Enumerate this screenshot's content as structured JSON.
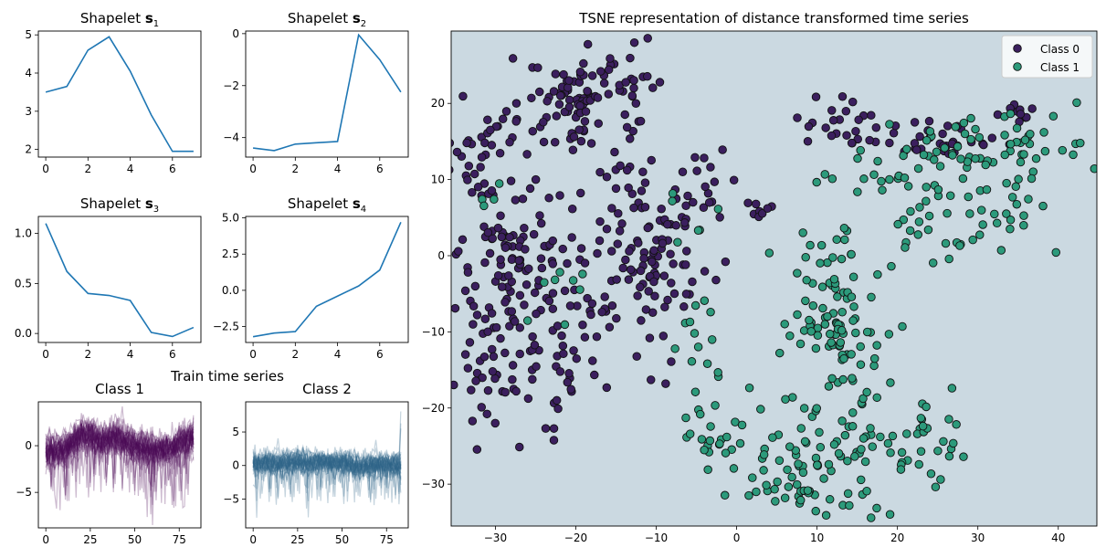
{
  "colors": {
    "line": "#1f77b4",
    "class0": "#3b1f5e",
    "class1": "#2c9a7b",
    "class1_light": "#3db891",
    "bg_region": "#cbd9e1",
    "train_class1": "#4a0a55",
    "train_class2": "#2e6688"
  },
  "chart_data": [
    {
      "id": "s1",
      "type": "line",
      "title_prefix": "Shapelet ",
      "title_bold": "s",
      "title_sub": "1",
      "x": [
        0,
        1,
        2,
        3,
        4,
        5,
        6,
        7
      ],
      "values": [
        3.5,
        3.65,
        4.6,
        4.95,
        4.05,
        2.9,
        1.95,
        1.95
      ],
      "xlim": [
        -0.35,
        7.35
      ],
      "ylim": [
        1.8,
        5.1
      ],
      "xticks": [
        0,
        2,
        4,
        6
      ],
      "yticks": [
        2,
        3,
        4,
        5
      ],
      "xtick_labels": [
        "0",
        "2",
        "4",
        "6"
      ],
      "ytick_labels": [
        "2",
        "3",
        "4",
        "5"
      ]
    },
    {
      "id": "s2",
      "type": "line",
      "title_prefix": "Shapelet ",
      "title_bold": "s",
      "title_sub": "2",
      "x": [
        0,
        1,
        2,
        3,
        4,
        5,
        6,
        7
      ],
      "values": [
        -4.4,
        -4.5,
        -4.25,
        -4.2,
        -4.15,
        -0.05,
        -1.0,
        -2.25
      ],
      "xlim": [
        -0.35,
        7.35
      ],
      "ylim": [
        -4.75,
        0.1
      ],
      "xticks": [
        0,
        2,
        4,
        6
      ],
      "yticks": [
        -4,
        -2,
        0
      ],
      "xtick_labels": [
        "0",
        "2",
        "4",
        "6"
      ],
      "ytick_labels": [
        "−4",
        "−2",
        "0"
      ]
    },
    {
      "id": "s3",
      "type": "line",
      "title_prefix": "Shapelet ",
      "title_bold": "s",
      "title_sub": "3",
      "x": [
        0,
        1,
        2,
        3,
        4,
        5,
        6,
        7
      ],
      "values": [
        1.1,
        0.62,
        0.4,
        0.38,
        0.33,
        0.01,
        -0.03,
        0.06
      ],
      "xlim": [
        -0.35,
        7.35
      ],
      "ylim": [
        -0.09,
        1.17
      ],
      "xticks": [
        0,
        2,
        4,
        6
      ],
      "yticks": [
        0,
        0.5,
        1
      ],
      "xtick_labels": [
        "0",
        "2",
        "4",
        "6"
      ],
      "ytick_labels": [
        "0.0",
        "0.5",
        "1.0"
      ]
    },
    {
      "id": "s4",
      "type": "line",
      "title_prefix": "Shapelet ",
      "title_bold": "s",
      "title_sub": "4",
      "x": [
        0,
        1,
        2,
        3,
        4,
        5,
        6,
        7
      ],
      "values": [
        -3.2,
        -2.95,
        -2.85,
        -1.1,
        -0.4,
        0.3,
        1.4,
        4.7
      ],
      "xlim": [
        -0.35,
        7.35
      ],
      "ylim": [
        -3.6,
        5.1
      ],
      "xticks": [
        0,
        2,
        4,
        6
      ],
      "yticks": [
        -2.5,
        0,
        2.5,
        5
      ],
      "xtick_labels": [
        "0",
        "2",
        "4",
        "6"
      ],
      "ytick_labels": [
        "−2.5",
        "0.0",
        "2.5",
        "5.0"
      ]
    },
    {
      "id": "c1",
      "type": "line",
      "subtitle": "Train time series",
      "title": "Class 1",
      "x_range": [
        0,
        83
      ],
      "mean_profile": [
        [
          0,
          -0.5
        ],
        [
          10,
          -0.3
        ],
        [
          20,
          1.2
        ],
        [
          30,
          0.6
        ],
        [
          40,
          0.8
        ],
        [
          50,
          0.0
        ],
        [
          60,
          -0.6
        ],
        [
          70,
          -0.2
        ],
        [
          83,
          1.0
        ]
      ],
      "xlim": [
        -4.2,
        87.2
      ],
      "ylim": [
        -8.8,
        4.7
      ],
      "xticks": [
        0,
        25,
        50,
        75
      ],
      "yticks": [
        -5,
        0
      ],
      "xtick_labels": [
        "0",
        "25",
        "50",
        "75"
      ],
      "ytick_labels": [
        "−5",
        "0"
      ]
    },
    {
      "id": "c2",
      "type": "line",
      "title": "Class 2",
      "x_range": [
        0,
        83
      ],
      "mean_profile": [
        [
          0,
          0.5
        ],
        [
          10,
          0.3
        ],
        [
          20,
          0.6
        ],
        [
          30,
          0.4
        ],
        [
          40,
          0.7
        ],
        [
          50,
          0.3
        ],
        [
          60,
          0.0
        ],
        [
          70,
          0.2
        ],
        [
          83,
          -0.2
        ]
      ],
      "xlim": [
        -4.2,
        87.2
      ],
      "ylim": [
        -9.3,
        9.5
      ],
      "xticks": [
        0,
        25,
        50,
        75
      ],
      "yticks": [
        -5,
        0,
        5
      ],
      "xtick_labels": [
        "0",
        "25",
        "50",
        "75"
      ],
      "ytick_labels": [
        "−5",
        "0",
        "5"
      ]
    },
    {
      "id": "tsne",
      "type": "scatter",
      "title": "TSNE representation of distance transformed time series",
      "xlim": [
        -35.5,
        44.8
      ],
      "ylim": [
        -35.5,
        29.5
      ],
      "xticks": [
        -30,
        -20,
        -10,
        0,
        10,
        20,
        30,
        40
      ],
      "yticks": [
        -30,
        -20,
        -10,
        0,
        10,
        20
      ],
      "xtick_labels": [
        "−30",
        "−20",
        "−10",
        "0",
        "10",
        "20",
        "30",
        "40"
      ],
      "ytick_labels": [
        "−30",
        "−20",
        "−10",
        "0",
        "10",
        "20"
      ],
      "legend": [
        "Class 0",
        "Class 1"
      ],
      "legend_position": "top-right",
      "series": [
        {
          "name": "Class 0",
          "clusters": [
            [
              -32,
              13,
              3,
              4,
              45
            ],
            [
              -31,
              -10,
              3,
              7,
              70
            ],
            [
              -28,
              1,
              2,
              4,
              35
            ],
            [
              -24,
              -8,
              2.5,
              8,
              50
            ],
            [
              -21,
              20,
              3,
              3,
              55
            ],
            [
              -15,
              21,
              3,
              4,
              45
            ],
            [
              -13,
              5,
              2.5,
              4,
              35
            ],
            [
              -10,
              -3,
              2,
              6,
              40
            ],
            [
              -7,
              2,
              2,
              5,
              30
            ],
            [
              -3,
              11,
              1.5,
              2,
              12
            ],
            [
              -17,
              -3,
              2,
              5,
              25
            ],
            [
              12,
              17,
              2.5,
              2,
              22
            ],
            [
              25,
              15,
              4,
              1.5,
              35
            ],
            [
              35,
              19,
              2,
              1,
              10
            ],
            [
              -22,
              -14,
              2,
              4,
              20
            ],
            [
              3,
              6,
              1.2,
              0.5,
              8
            ]
          ]
        },
        {
          "name": "Class 1",
          "clusters": [
            [
              35,
              15,
              5,
              3,
              35
            ],
            [
              30,
              8,
              5,
              4,
              35
            ],
            [
              24,
              3,
              3,
              3,
              20
            ],
            [
              12,
              -4,
              3,
              4,
              45
            ],
            [
              13,
              -16,
              3,
              5,
              45
            ],
            [
              15,
              -28,
              4,
              3,
              45
            ],
            [
              24,
              -24,
              2,
              3,
              25
            ],
            [
              6,
              -31,
              3,
              1,
              20
            ],
            [
              -3,
              -22,
              2,
              3,
              22
            ],
            [
              -5,
              -10,
              1.5,
              4,
              12
            ],
            [
              16,
              10,
              3,
              2,
              15
            ],
            [
              26,
              13,
              5,
              2,
              20
            ],
            [
              12,
              -10,
              3,
              2,
              25
            ],
            [
              5,
              -25,
              3,
              3,
              20
            ],
            [
              -22,
              -4,
              2,
              3,
              8
            ],
            [
              -7,
              6,
              1.5,
              2,
              6
            ],
            [
              -30,
              8,
              1.5,
              2,
              4
            ]
          ]
        }
      ]
    }
  ]
}
